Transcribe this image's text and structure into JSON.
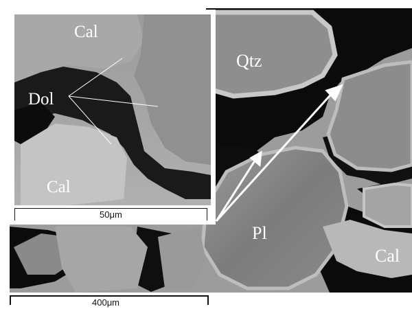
{
  "image": {
    "labels": {
      "qtz": "Qtz",
      "pl": "Pl",
      "cal_main": "Cal",
      "inset_cal_top": "Cal",
      "inset_dol": "Dol",
      "inset_cal_bottom": "Cal"
    },
    "scale_bars": {
      "main": "400μm",
      "inset": "50μm"
    },
    "colors": {
      "matrix_gray": "#9c9c9c",
      "pore_black": "#0b0b0b",
      "calcite_light": "#c8c8c8",
      "quartz_gray": "#8e8e8e",
      "plagioclase_gray": "#8a8a8a",
      "inset_frame": "#ffffff",
      "arrow": "#ffffff"
    }
  }
}
